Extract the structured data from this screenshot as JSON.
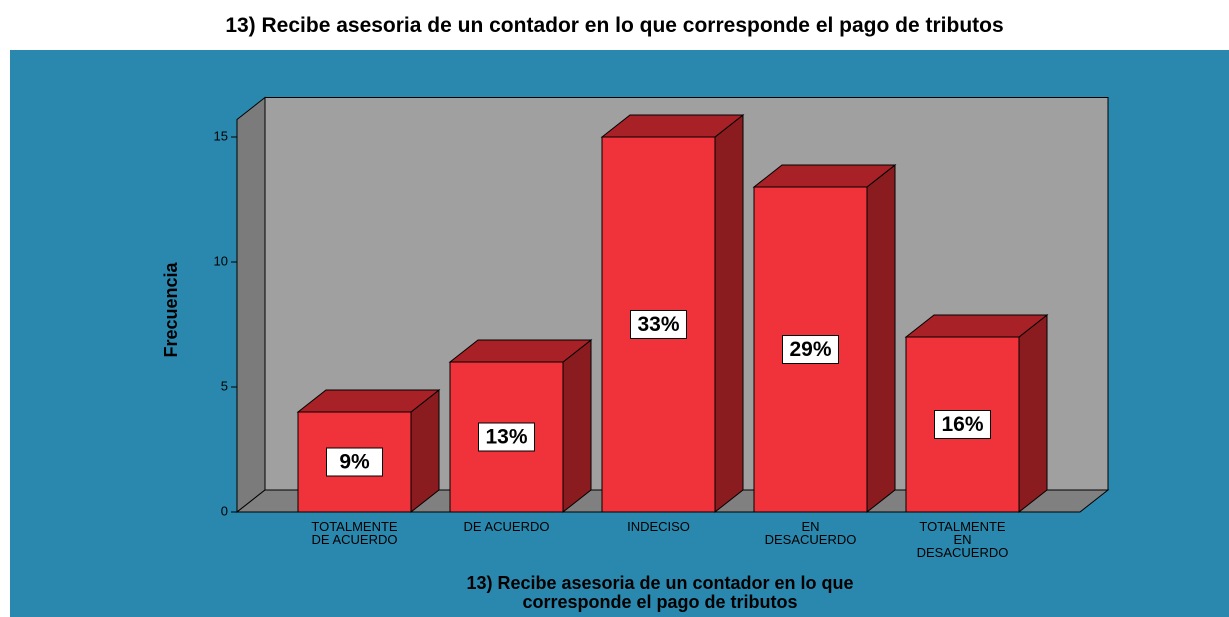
{
  "chart_data": {
    "type": "bar3d",
    "title": "13) Recibe asesoria de un contador en lo que corresponde el pago de tributos",
    "x_label": "13) Recibe asesoria de un contador en lo que\ncorresponde el pago de tributos",
    "y_label": "Frecuencia",
    "categories": [
      "TOTALMENTE\nDE ACUERDO",
      "DE ACUERDO",
      "INDECISO",
      "EN\nDESACUERDO",
      "TOTALMENTE\nEN\nDESACUERDO"
    ],
    "values": [
      4,
      6,
      15,
      13,
      7
    ],
    "percent_labels": [
      "9%",
      "13%",
      "33%",
      "29%",
      "16%"
    ],
    "color": "#f0323b",
    "ylim": [
      0,
      15.7
    ],
    "yticks": [
      0,
      5,
      10,
      15
    ]
  }
}
